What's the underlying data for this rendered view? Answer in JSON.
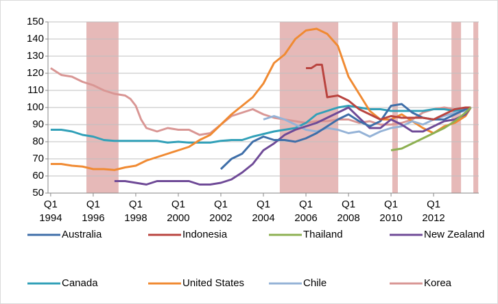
{
  "chart_data": {
    "type": "line",
    "xlim": [
      1993.875,
      2014.125
    ],
    "xticks": [
      {
        "value": 1994,
        "label": "Q1 1994"
      },
      {
        "value": 1996,
        "label": "Q1 1996"
      },
      {
        "value": 1998,
        "label": "Q1 1998"
      },
      {
        "value": 2000,
        "label": "Q1 2000"
      },
      {
        "value": 2002,
        "label": "Q1 2002"
      },
      {
        "value": 2004,
        "label": "Q1 2004"
      },
      {
        "value": 2006,
        "label": "Q1 2006"
      },
      {
        "value": 2008,
        "label": "Q1 2008"
      },
      {
        "value": 2010,
        "label": "Q1 2010"
      },
      {
        "value": 2012,
        "label": "Q1 2012"
      }
    ],
    "ylim": [
      50,
      150
    ],
    "yticks": [
      50,
      60,
      70,
      80,
      90,
      100,
      110,
      120,
      130,
      140,
      150
    ],
    "grid": true,
    "shaded_ranges": [
      [
        1995.68,
        1997.19
      ],
      [
        2004.77,
        2007.52
      ],
      [
        2010.06,
        2010.32
      ],
      [
        2012.84,
        2013.29
      ],
      [
        2013.87,
        2014.1
      ]
    ],
    "shade_color": "#e6b9b8",
    "legend": "bottom",
    "series": [
      {
        "name": "Australia",
        "color": "#3e6ea8",
        "x": [
          2002,
          2002.5,
          2003,
          2003.5,
          2004,
          2004.5,
          2005,
          2005.5,
          2006,
          2006.5,
          2007,
          2007.5,
          2008,
          2008.5,
          2009,
          2009.5,
          2010,
          2010.5,
          2011,
          2011.5,
          2012,
          2012.5,
          2013,
          2013.5,
          2013.75
        ],
        "values": [
          64,
          70,
          73,
          80,
          83,
          81,
          81,
          80,
          82,
          85,
          89,
          93,
          96,
          92,
          89,
          92,
          101,
          102,
          97,
          94,
          93,
          93,
          96,
          99,
          100
        ]
      },
      {
        "name": "Indonesia",
        "color": "#b9443f",
        "x": [
          2006,
          2006.25,
          2006.5,
          2006.75,
          2007,
          2007.5,
          2008,
          2008.5,
          2009,
          2009.5,
          2010,
          2010.5,
          2011,
          2011.5,
          2012,
          2012.5,
          2013,
          2013.5,
          2013.75
        ],
        "values": [
          123,
          123,
          125,
          125,
          106,
          107,
          104,
          99,
          96,
          93,
          95,
          94,
          94,
          94,
          93,
          96,
          99,
          100,
          100
        ]
      },
      {
        "name": "Thailand",
        "color": "#8db052",
        "x": [
          2010,
          2010.5,
          2011,
          2011.5,
          2012,
          2012.5,
          2013,
          2013.5,
          2013.75
        ],
        "values": [
          75,
          76,
          79,
          82,
          85,
          88,
          92,
          97,
          100
        ]
      },
      {
        "name": "New Zealand",
        "color": "#6f4a97",
        "x": [
          1997,
          1997.5,
          1998,
          1998.5,
          1999,
          1999.5,
          2000,
          2000.5,
          2001,
          2001.5,
          2002,
          2002.5,
          2003,
          2003.5,
          2004,
          2004.5,
          2005,
          2005.5,
          2006,
          2006.5,
          2007,
          2007.5,
          2008,
          2008.5,
          2009,
          2009.5,
          2010,
          2010.5,
          2011,
          2011.5,
          2012,
          2012.5,
          2013,
          2013.5,
          2013.75
        ],
        "values": [
          57,
          57,
          56,
          55,
          57,
          57,
          57,
          57,
          55,
          55,
          56,
          58,
          62,
          67,
          75,
          79,
          84,
          87,
          89,
          91,
          94,
          97,
          100,
          94,
          88,
          88,
          93,
          90,
          86,
          86,
          89,
          92,
          93,
          96,
          100
        ]
      },
      {
        "name": "Canada",
        "color": "#31a0b8",
        "x": [
          1994,
          1994.5,
          1995,
          1995.5,
          1996,
          1996.5,
          1997,
          1998,
          1999,
          1999.5,
          2000,
          2000.5,
          2001,
          2001.5,
          2002,
          2002.5,
          2003,
          2003.5,
          2004,
          2004.5,
          2005,
          2005.5,
          2006,
          2006.5,
          2007,
          2007.5,
          2008,
          2008.5,
          2009,
          2009.5,
          2010,
          2011,
          2011.5,
          2012,
          2012.5,
          2013,
          2013.5,
          2013.75
        ],
        "values": [
          87,
          87,
          86,
          84,
          83,
          81,
          80.5,
          80.5,
          80.5,
          79.5,
          80,
          79.5,
          79.5,
          79.5,
          80.5,
          81,
          81,
          83,
          84.5,
          86,
          87,
          88,
          91,
          96,
          98,
          100,
          101,
          100,
          99,
          99,
          98,
          98,
          98,
          99,
          99,
          98,
          98.5,
          100
        ]
      },
      {
        "name": "United States",
        "color": "#f08a32",
        "x": [
          1994,
          1994.5,
          1995,
          1995.5,
          1996,
          1996.5,
          1997,
          1997.5,
          1998,
          1998.5,
          1999,
          1999.5,
          2000,
          2000.5,
          2001,
          2001.5,
          2002,
          2002.5,
          2003,
          2003.5,
          2004,
          2004.5,
          2005,
          2005.5,
          2006,
          2006.5,
          2007,
          2007.5,
          2008,
          2008.5,
          2009,
          2009.5,
          2010,
          2010.5,
          2011,
          2011.5,
          2012,
          2012.5,
          2013,
          2013.5,
          2013.75
        ],
        "values": [
          67,
          67,
          66,
          65.5,
          64,
          64,
          63.5,
          65,
          66,
          69,
          71,
          73,
          75,
          77,
          81,
          84,
          90,
          96,
          101,
          106,
          114,
          126,
          131,
          140,
          145,
          146,
          143,
          136,
          118,
          108,
          98,
          93,
          93,
          96,
          92,
          88,
          85,
          89,
          91,
          95,
          100
        ]
      },
      {
        "name": "Chile",
        "color": "#95b3d7",
        "x": [
          2004,
          2004.5,
          2005,
          2005.5,
          2006,
          2006.5,
          2007,
          2007.5,
          2008,
          2008.5,
          2009,
          2009.5,
          2010,
          2010.5,
          2011,
          2011.5,
          2012,
          2012.5,
          2013,
          2013.5,
          2013.75
        ],
        "values": [
          93,
          95,
          93,
          90,
          87,
          86,
          88,
          87,
          85,
          86,
          83,
          86,
          88,
          89,
          92,
          90,
          93,
          95,
          97,
          98,
          100
        ]
      },
      {
        "name": "Korea",
        "color": "#d99694",
        "x": [
          1994,
          1994.5,
          1995,
          1995.5,
          1996,
          1996.5,
          1997,
          1997.5,
          1997.75,
          1998,
          1998.25,
          1998.5,
          1999,
          1999.5,
          2000,
          2000.5,
          2001,
          2001.5,
          2002,
          2002.5,
          2003,
          2003.5,
          2004,
          2004.5,
          2005,
          2005.5,
          2006,
          2006.5,
          2007,
          2007.5,
          2008,
          2008.5,
          2009,
          2009.5,
          2010,
          2010.5,
          2011,
          2011.5,
          2012,
          2012.5,
          2013,
          2013.5,
          2013.75
        ],
        "values": [
          123,
          119,
          118,
          115,
          113,
          110,
          108,
          107,
          105,
          101,
          93,
          88,
          86,
          88,
          87,
          87,
          84,
          85,
          90,
          95,
          97,
          99,
          96,
          94,
          93,
          92,
          91,
          92,
          92,
          93,
          93,
          91,
          92,
          90,
          90,
          91,
          93,
          97,
          99,
          100,
          99,
          99,
          100
        ]
      }
    ]
  }
}
